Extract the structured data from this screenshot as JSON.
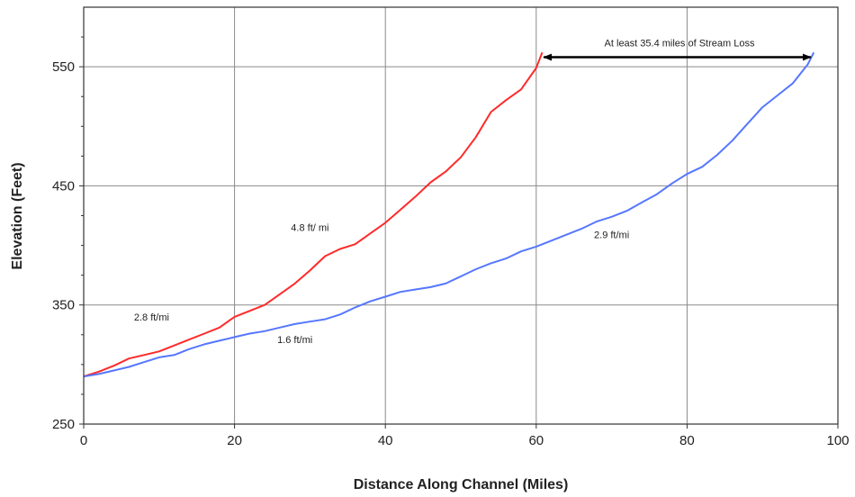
{
  "chart_data": {
    "type": "line",
    "xlabel": "Distance Along Channel (Miles)",
    "ylabel": "Elevation (Feet)",
    "xlim": [
      0,
      100
    ],
    "ylim": [
      250,
      600
    ],
    "x_ticks": [
      0,
      20,
      40,
      60,
      80,
      100
    ],
    "y_ticks": [
      250,
      350,
      450,
      550
    ],
    "grid": true,
    "series": [
      {
        "color": "#ff2a2a",
        "points": [
          [
            0,
            290
          ],
          [
            2,
            294
          ],
          [
            4,
            299
          ],
          [
            6,
            305
          ],
          [
            8,
            308
          ],
          [
            10,
            311
          ],
          [
            12,
            316
          ],
          [
            14,
            321
          ],
          [
            16,
            326
          ],
          [
            18,
            331
          ],
          [
            20,
            340
          ],
          [
            22,
            345
          ],
          [
            24,
            350
          ],
          [
            26,
            359
          ],
          [
            28,
            368
          ],
          [
            30,
            379
          ],
          [
            32,
            391
          ],
          [
            34,
            397
          ],
          [
            36,
            401
          ],
          [
            38,
            410
          ],
          [
            40,
            419
          ],
          [
            42,
            430
          ],
          [
            44,
            441
          ],
          [
            46,
            453
          ],
          [
            48,
            462
          ],
          [
            50,
            474
          ],
          [
            52,
            491
          ],
          [
            54,
            512
          ],
          [
            56,
            522
          ],
          [
            58,
            531
          ],
          [
            60,
            549
          ],
          [
            60.8,
            562
          ]
        ]
      },
      {
        "color": "#5577ff",
        "points": [
          [
            0,
            290
          ],
          [
            2,
            292
          ],
          [
            4,
            295
          ],
          [
            6,
            298
          ],
          [
            8,
            302
          ],
          [
            10,
            306
          ],
          [
            12,
            308
          ],
          [
            14,
            313
          ],
          [
            16,
            317
          ],
          [
            18,
            320
          ],
          [
            20,
            323
          ],
          [
            22,
            326
          ],
          [
            24,
            328
          ],
          [
            26,
            331
          ],
          [
            28,
            334
          ],
          [
            30,
            336
          ],
          [
            32,
            338
          ],
          [
            34,
            342
          ],
          [
            36,
            348
          ],
          [
            38,
            353
          ],
          [
            40,
            357
          ],
          [
            42,
            361
          ],
          [
            44,
            363
          ],
          [
            46,
            365
          ],
          [
            48,
            368
          ],
          [
            50,
            374
          ],
          [
            52,
            380
          ],
          [
            54,
            385
          ],
          [
            56,
            389
          ],
          [
            58,
            395
          ],
          [
            60,
            399
          ],
          [
            62,
            404
          ],
          [
            64,
            409
          ],
          [
            66,
            414
          ],
          [
            68,
            420
          ],
          [
            70,
            424
          ],
          [
            72,
            429
          ],
          [
            74,
            436
          ],
          [
            76,
            443
          ],
          [
            78,
            452
          ],
          [
            80,
            460
          ],
          [
            82,
            466
          ],
          [
            84,
            476
          ],
          [
            86,
            488
          ],
          [
            88,
            502
          ],
          [
            90,
            516
          ],
          [
            92,
            526
          ],
          [
            94,
            536
          ],
          [
            96,
            552
          ],
          [
            96.8,
            562
          ]
        ]
      }
    ],
    "annotations": [
      {
        "text": "2.8 ft/mi",
        "x": 9,
        "y": 337
      },
      {
        "text": "4.8 ft/ mi",
        "x": 30,
        "y": 412
      },
      {
        "text": "1.6 ft/mi",
        "x": 28,
        "y": 318
      },
      {
        "text": "2.9 ft/mi",
        "x": 70,
        "y": 406
      },
      {
        "text": "At least 35.4 miles of Stream Loss",
        "x": 79,
        "y": 567,
        "arrow_from": 61,
        "arrow_to": 96.4,
        "arrow_y": 558
      }
    ]
  }
}
